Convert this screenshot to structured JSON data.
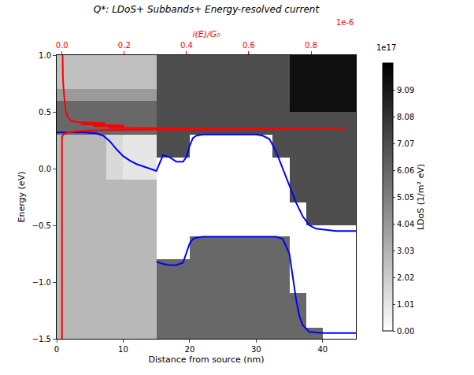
{
  "chart_data": {
    "type": "heatmap",
    "title": "Q*: LDoS+ Subbands+ Energy-resolved current",
    "x_label": "Distance from source (nm)",
    "y_label": "Energy (eV)",
    "x2_label": "i(E)/G₀",
    "x2_exponent": "1e-6",
    "xlim": [
      0,
      45
    ],
    "xticks": [
      0,
      10,
      20,
      30,
      40
    ],
    "ylim": [
      -1.5,
      1.0
    ],
    "yticks": [
      {
        "value": -1.5,
        "label": "−1.5"
      },
      {
        "value": -1.0,
        "label": "−1.0"
      },
      {
        "value": -0.5,
        "label": "−0.5"
      },
      {
        "value": 0.0,
        "label": "0.0"
      },
      0.5,
      {
        "value": 1.0,
        "label": "1.0"
      }
    ],
    "x2lim": [
      -0.017,
      0.944
    ],
    "x2ticks": [
      {
        "value": 0,
        "label": "0.0"
      },
      0.2,
      0.4,
      0.6,
      0.8
    ],
    "heatmap": {
      "x": [
        1.25,
        3.75,
        6.25,
        8.75,
        11.25,
        13.75,
        16.25,
        18.75,
        21.25,
        23.75,
        26.25,
        28.75,
        31.25,
        33.75,
        36.25,
        38.75,
        41.25,
        43.75
      ],
      "y": [
        -1.45,
        -1.35,
        -1.25,
        -1.15,
        -1.05,
        -0.95,
        -0.85,
        -0.75,
        -0.65,
        -0.55,
        -0.45,
        -0.35,
        -0.25,
        -0.15,
        -0.05,
        0.05,
        0.15,
        0.25,
        0.35,
        0.45,
        0.55,
        0.65,
        0.75,
        0.85,
        0.95
      ],
      "z": [
        [
          2.8,
          2.8,
          2.8,
          2.8,
          2.8,
          2.8,
          6,
          6,
          6,
          6,
          6,
          6,
          6,
          6,
          6,
          6,
          0,
          0
        ],
        [
          2.8,
          2.8,
          2.8,
          2.8,
          2.8,
          2.8,
          6,
          6,
          6,
          6,
          6,
          6,
          6,
          6,
          6,
          0,
          0,
          0
        ],
        [
          2.8,
          2.8,
          2.8,
          2.8,
          2.8,
          2.8,
          6,
          6,
          6,
          6,
          6,
          6,
          6,
          6,
          6,
          0,
          0,
          0
        ],
        [
          2.8,
          2.8,
          2.8,
          2.8,
          2.8,
          2.8,
          6,
          6,
          6,
          6,
          6,
          6,
          6,
          6,
          6,
          0,
          0,
          0
        ],
        [
          2.8,
          2.8,
          2.8,
          2.8,
          2.8,
          2.8,
          6,
          6,
          6,
          6,
          6,
          6,
          6,
          6,
          0,
          0,
          0,
          0
        ],
        [
          2.8,
          2.8,
          2.8,
          2.8,
          2.8,
          2.8,
          6,
          6,
          6,
          6,
          6,
          6,
          6,
          6,
          0,
          0,
          0,
          0
        ],
        [
          2.8,
          2.8,
          2.8,
          2.8,
          2.8,
          2.8,
          6,
          6,
          6,
          6,
          6,
          6,
          6,
          6,
          0,
          0,
          0,
          0
        ],
        [
          2.8,
          2.8,
          2.8,
          2.8,
          2.8,
          2.8,
          0,
          0,
          6,
          6,
          6,
          6,
          6,
          6,
          0,
          0,
          0,
          0
        ],
        [
          2.8,
          2.8,
          2.8,
          2.8,
          2.8,
          2.8,
          0,
          0,
          6,
          6,
          6,
          6,
          6,
          6,
          0,
          0,
          0,
          0
        ],
        [
          2.8,
          2.8,
          2.8,
          2.8,
          2.8,
          2.8,
          0,
          0,
          0,
          0,
          0,
          0,
          0,
          0,
          0,
          0,
          0,
          0
        ],
        [
          2.8,
          2.8,
          2.8,
          2.8,
          2.8,
          2.8,
          0,
          0,
          0,
          0,
          0,
          0,
          0,
          0,
          0,
          7,
          7,
          7
        ],
        [
          2.8,
          2.8,
          2.8,
          2.8,
          2.8,
          2.8,
          0,
          0,
          0,
          0,
          0,
          0,
          0,
          0,
          0,
          7,
          7,
          7
        ],
        [
          2.8,
          2.8,
          2.8,
          2.8,
          2.8,
          2.8,
          0,
          0,
          0,
          0,
          0,
          0,
          0,
          0,
          7,
          7,
          7,
          7
        ],
        [
          2.8,
          2.8,
          2.8,
          2.8,
          2.8,
          2.8,
          0,
          0,
          0,
          0,
          0,
          0,
          0,
          0,
          7,
          7,
          7,
          7
        ],
        [
          2.8,
          2.8,
          2.8,
          1.5,
          1.0,
          1.0,
          0,
          0,
          0,
          0,
          0,
          0,
          0,
          0,
          7,
          7,
          7,
          7
        ],
        [
          2.8,
          2.8,
          2.8,
          1.5,
          1.0,
          1.0,
          0,
          0,
          0,
          0,
          0,
          0,
          0,
          0,
          7,
          7,
          7,
          7
        ],
        [
          2.8,
          2.8,
          2.8,
          1.5,
          1.0,
          1.0,
          7,
          7,
          0,
          0,
          0,
          0,
          0,
          7,
          7,
          7,
          7,
          7
        ],
        [
          2.8,
          2.8,
          2.8,
          1.5,
          1.0,
          1.0,
          7,
          7,
          0,
          0,
          0,
          0,
          0,
          7,
          7,
          7,
          7,
          7
        ],
        [
          6,
          6,
          6,
          6,
          6,
          6,
          7,
          7,
          7,
          7,
          7,
          7,
          7,
          7,
          7,
          7,
          7,
          7
        ],
        [
          6,
          6,
          6,
          6,
          6,
          6,
          7,
          7,
          7,
          7,
          7,
          7,
          7,
          7,
          7,
          7,
          7,
          7
        ],
        [
          6,
          6,
          6,
          6,
          6,
          6,
          7,
          7,
          7,
          7,
          7,
          7,
          7,
          7,
          9.5,
          9.5,
          9.5,
          9.5
        ],
        [
          4,
          4,
          4,
          4,
          4,
          4,
          7,
          7,
          7,
          7,
          7,
          7,
          7,
          7,
          9.5,
          9.5,
          9.5,
          9.5
        ],
        [
          2.5,
          2.5,
          2.5,
          2.5,
          2.5,
          2.5,
          7,
          7,
          7,
          7,
          7,
          7,
          7,
          7,
          9.5,
          9.5,
          9.5,
          9.5
        ],
        [
          2.5,
          2.5,
          2.5,
          2.5,
          2.5,
          2.5,
          7,
          7,
          7,
          7,
          7,
          7,
          7,
          7,
          9.5,
          9.5,
          9.5,
          9.5
        ],
        [
          2.5,
          2.5,
          2.5,
          2.5,
          2.5,
          2.5,
          7,
          7,
          7,
          7,
          7,
          7,
          7,
          7,
          9.5,
          9.5,
          9.5,
          9.5
        ]
      ],
      "colorbar": {
        "title": "LDoS (1/m² eV)",
        "exponent": "1e17",
        "zlim": [
          0,
          10.1
        ],
        "ticks": [
          {
            "value": 0,
            "label": "0.00"
          },
          1.01,
          2.02,
          3.03,
          4.04,
          5.05,
          6.06,
          7.07,
          8.08,
          9.09
        ]
      }
    },
    "series": [
      {
        "type": "line",
        "color": "#0000ff",
        "x": [
          0,
          2,
          4,
          6,
          7,
          8,
          9,
          10,
          11,
          12,
          13,
          14,
          15,
          15.5,
          16,
          17,
          18,
          19,
          19.5,
          20,
          20.5,
          21,
          22,
          24,
          28,
          30,
          31,
          32,
          33,
          34,
          35,
          36,
          37,
          38,
          39,
          42,
          45
        ],
        "values": [
          0.32,
          0.32,
          0.32,
          0.31,
          0.29,
          0.24,
          0.17,
          0.11,
          0.07,
          0.04,
          0.02,
          0.0,
          -0.02,
          0.05,
          0.12,
          0.1,
          0.06,
          0.06,
          0.1,
          0.2,
          0.27,
          0.29,
          0.3,
          0.3,
          0.3,
          0.3,
          0.29,
          0.26,
          0.15,
          0.0,
          -0.15,
          -0.3,
          -0.42,
          -0.5,
          -0.53,
          -0.55,
          -0.55
        ]
      },
      {
        "type": "line",
        "color": "#0000ff",
        "x": [
          15,
          16,
          17,
          18,
          19,
          19.5,
          20,
          20.5,
          21,
          22,
          25,
          30,
          33,
          34,
          35,
          35.5,
          36,
          36.5,
          37,
          38,
          40,
          45
        ],
        "values": [
          -0.82,
          -0.84,
          -0.85,
          -0.85,
          -0.83,
          -0.75,
          -0.66,
          -0.62,
          -0.61,
          -0.6,
          -0.6,
          -0.6,
          -0.6,
          -0.62,
          -0.75,
          -0.95,
          -1.15,
          -1.3,
          -1.38,
          -1.44,
          -1.45,
          -1.45
        ]
      },
      {
        "type": "line",
        "color": "#ff0000",
        "axis": "x2",
        "y": [
          -1.5,
          0.28,
          0.3,
          0.31,
          0.32,
          0.33,
          0.34,
          0.345,
          0.35,
          0.355,
          0.36,
          0.37,
          0.375,
          0.38,
          0.39,
          0.4,
          0.41,
          0.42,
          0.45,
          0.5,
          0.6,
          0.7,
          0.8,
          1.0
        ],
        "values": [
          0,
          0,
          0.005,
          0.01,
          0.02,
          0.05,
          0.15,
          0.5,
          0.91,
          0.4,
          0.15,
          0.2,
          0.1,
          0.2,
          0.06,
          0.14,
          0.05,
          0.03,
          0.02,
          0.012,
          0.008,
          0.005,
          0.003,
          0.002
        ]
      }
    ]
  }
}
